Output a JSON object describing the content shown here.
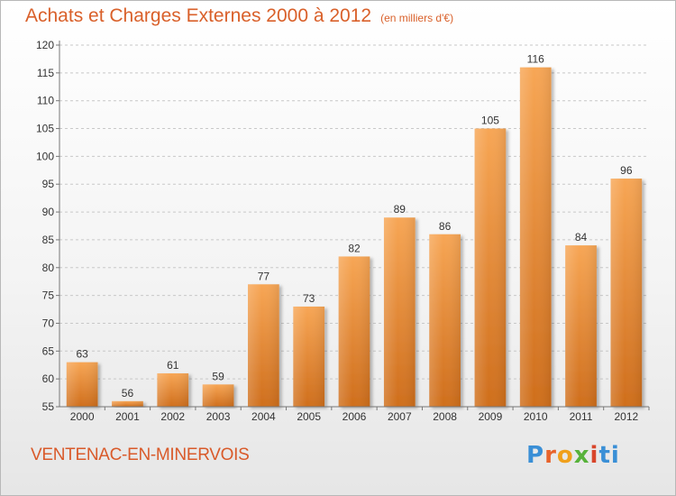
{
  "header": {
    "title": "Achats et Charges Externes 2000 à 2012",
    "unit": "(en milliers d'€)"
  },
  "footer": {
    "commune": "VENTENAC-EN-MINERVOIS",
    "logo": "Proxiti"
  },
  "colors": {
    "bar_top": "#f7a655",
    "bar_bottom": "#cf6e1c",
    "title": "#d9602a"
  },
  "chart_data": {
    "type": "bar",
    "title": "Achats et Charges Externes 2000 à 2012",
    "subtitle": "(en milliers d'€)",
    "xlabel": "",
    "ylabel": "",
    "categories": [
      "2000",
      "2001",
      "2002",
      "2003",
      "2004",
      "2005",
      "2006",
      "2007",
      "2008",
      "2009",
      "2010",
      "2011",
      "2012"
    ],
    "values": [
      63,
      56,
      61,
      59,
      77,
      73,
      82,
      89,
      86,
      105,
      116,
      84,
      96
    ],
    "ylim": [
      55,
      120
    ],
    "yticks": [
      55,
      60,
      65,
      70,
      75,
      80,
      85,
      90,
      95,
      100,
      105,
      110,
      115,
      120
    ],
    "grid": true,
    "legend": "none"
  }
}
